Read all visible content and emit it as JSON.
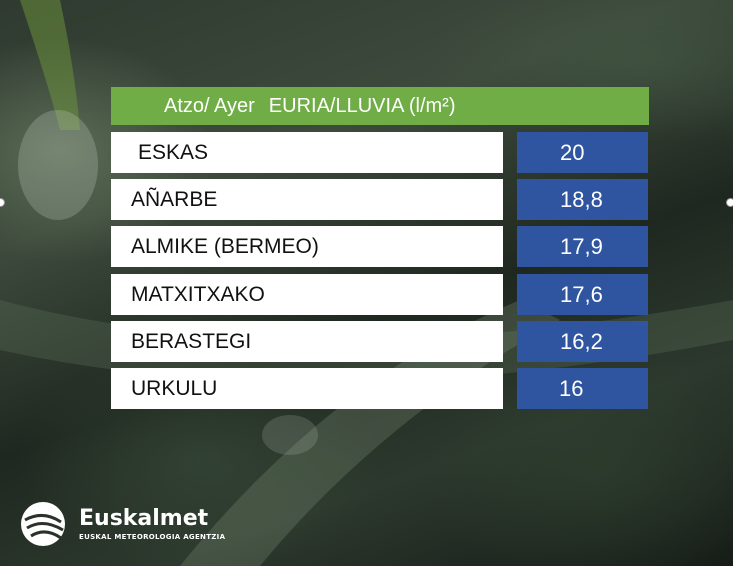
{
  "header": {
    "prefix": "Atzo/ Ayer",
    "title": "EURIA/LLUVIA (l/m²)"
  },
  "rows": [
    {
      "station": "ESKAS",
      "value": "20"
    },
    {
      "station": "AÑARBE",
      "value": "18,8"
    },
    {
      "station": "ALMIKE (BERMEO)",
      "value": "17,9"
    },
    {
      "station": "MATXITXAKO",
      "value": "17,6"
    },
    {
      "station": "BERASTEGI",
      "value": "16,2"
    },
    {
      "station": "URKULU",
      "value": "16"
    }
  ],
  "logo": {
    "name": "Euskalmet",
    "subtitle": "EUSKAL METEOROLOGIA AGENTZIA"
  },
  "colors": {
    "header_bg": "#70ad47",
    "value_bg": "#2f55a0",
    "station_bg": "#ffffff"
  }
}
